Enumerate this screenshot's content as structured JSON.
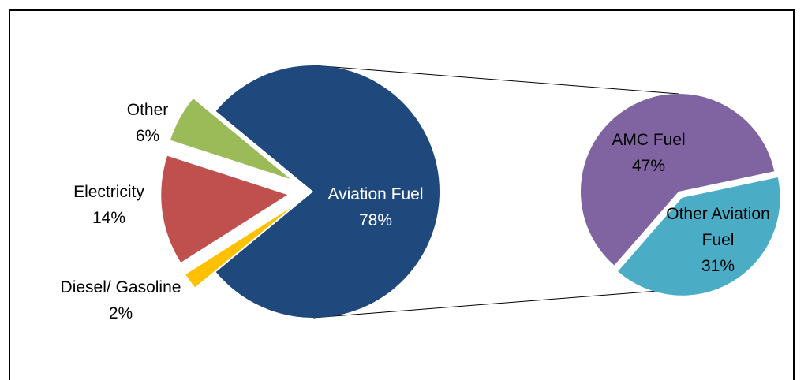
{
  "chart_data": [
    {
      "type": "pie",
      "slices": [
        {
          "label": "Aviation Fuel",
          "value_label": "78%",
          "value": 78,
          "color": "#1F497D",
          "text_color": "#ffffff"
        },
        {
          "label": "Diesel/ Gasoline",
          "value_label": "2%",
          "value": 2,
          "color": "#FFC000",
          "text_color": "#000000"
        },
        {
          "label": "Electricity",
          "value_label": "14%",
          "value": 14,
          "color": "#C0504D",
          "text_color": "#000000"
        },
        {
          "label": "Other",
          "value_label": "6%",
          "value": 6,
          "color": "#9BBB59",
          "text_color": "#000000"
        }
      ]
    },
    {
      "type": "pie",
      "slices": [
        {
          "label": "AMC Fuel",
          "value_label": "47%",
          "value": 47,
          "color": "#8064A2",
          "text_color": "#000000"
        },
        {
          "label": "Other Aviation Fuel",
          "value_label": "31%",
          "value": 31,
          "color": "#4BACC6",
          "text_color": "#000000"
        }
      ]
    }
  ]
}
